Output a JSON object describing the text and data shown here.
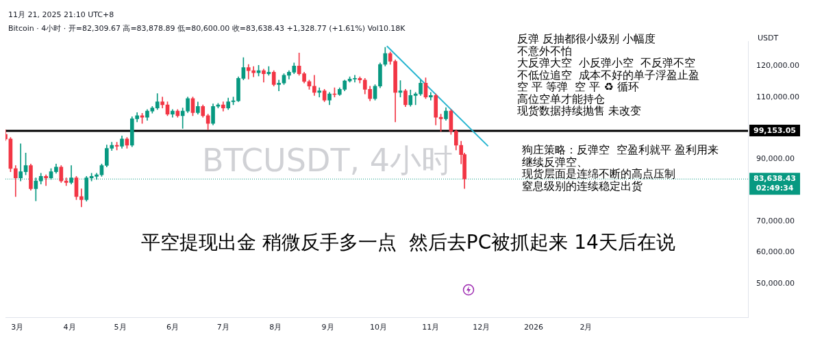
{
  "chart_data": {
    "type": "candlestick",
    "title": "平空提现出金 稍微反手多一点  然后去PC被抓起来 14天后在说",
    "ylabel": "USDT",
    "annotations": [
      "11月 21, 2025 21:10 UTC+8",
      "Bitcoin · 4小时 · 开=82,309.67 高=83,878.89 低=80,600.00 收=83,638.43 +1,328.77 (+1.61%) Vol10.18K",
      "BTCUSDT, 4小时",
      "02:49:34",
      "反弹 反抽都很小级别 小幅度",
      "不意外不怕",
      "大反弹大空  小反弹小空  不反弹不空",
      "不低位追空  成本不好的单子浮盈止盈",
      "空 平 等弹  空 平 ♻ 循环",
      "高位空单才能持仓",
      "现货数据持续抛售 未改变",
      "狗庄策略：反弹空  空盈利就平 盈利用来",
      "继续反弹空、",
      "现货层面是连绵不断的高点压制",
      "窒息级别的连续稳定出货"
    ],
    "x": [
      "2025-02-22",
      "2025-02-25",
      "2025-02-28",
      "2025-03-03",
      "2025-03-06",
      "2025-03-09",
      "2025-03-12",
      "2025-03-15",
      "2025-03-18",
      "2025-03-21",
      "2025-03-24",
      "2025-03-27",
      "2025-03-30",
      "2025-04-02",
      "2025-04-05",
      "2025-04-08",
      "2025-04-11",
      "2025-04-14",
      "2025-04-17",
      "2025-04-20",
      "2025-04-23",
      "2025-04-26",
      "2025-04-29",
      "2025-05-02",
      "2025-05-05",
      "2025-05-08",
      "2025-05-11",
      "2025-05-14",
      "2025-05-17",
      "2025-05-20",
      "2025-05-23",
      "2025-05-26",
      "2025-05-29",
      "2025-06-01",
      "2025-06-04",
      "2025-06-07",
      "2025-06-10",
      "2025-06-13",
      "2025-06-16",
      "2025-06-19",
      "2025-06-22",
      "2025-06-25",
      "2025-06-28",
      "2025-07-01",
      "2025-07-04",
      "2025-07-07",
      "2025-07-10",
      "2025-07-13",
      "2025-07-16",
      "2025-07-19",
      "2025-07-22",
      "2025-07-25",
      "2025-07-28",
      "2025-07-31",
      "2025-08-03",
      "2025-08-06",
      "2025-08-09",
      "2025-08-12",
      "2025-08-15",
      "2025-08-18",
      "2025-08-21",
      "2025-08-24",
      "2025-08-27",
      "2025-08-30",
      "2025-09-02",
      "2025-09-05",
      "2025-09-08",
      "2025-09-11",
      "2025-09-14",
      "2025-09-17",
      "2025-09-20",
      "2025-09-23",
      "2025-09-26",
      "2025-09-29",
      "2025-10-02",
      "2025-10-05",
      "2025-10-08",
      "2025-10-11",
      "2025-10-14",
      "2025-10-17",
      "2025-10-20",
      "2025-10-23",
      "2025-10-26",
      "2025-10-29",
      "2025-11-01",
      "2025-11-04",
      "2025-11-07",
      "2025-11-10",
      "2025-11-13",
      "2025-11-16",
      "2025-11-19",
      "2025-11-21"
    ],
    "ohlc": [
      [
        98000,
        99500,
        96000,
        96500
      ],
      [
        96500,
        97000,
        86000,
        87000
      ],
      [
        87000,
        88000,
        78000,
        84000
      ],
      [
        84000,
        95000,
        83000,
        86000
      ],
      [
        86000,
        92000,
        85000,
        88000
      ],
      [
        88000,
        88500,
        80000,
        80500
      ],
      [
        80500,
        84000,
        76600,
        83000
      ],
      [
        83000,
        85500,
        82000,
        84500
      ],
      [
        84500,
        85000,
        81500,
        84000
      ],
      [
        84000,
        87000,
        83500,
        86000
      ],
      [
        86000,
        88500,
        85500,
        87500
      ],
      [
        87500,
        88000,
        82500,
        83000
      ],
      [
        83000,
        84000,
        81500,
        82500
      ],
      [
        82500,
        88000,
        82000,
        84000
      ],
      [
        84000,
        84500,
        77000,
        78000
      ],
      [
        78000,
        80500,
        74700,
        77000
      ],
      [
        77000,
        84500,
        76500,
        84000
      ],
      [
        84000,
        85500,
        83000,
        84500
      ],
      [
        84500,
        85500,
        83500,
        85000
      ],
      [
        85000,
        88500,
        84500,
        88000
      ],
      [
        88000,
        94600,
        87500,
        93500
      ],
      [
        93500,
        95500,
        92800,
        94500
      ],
      [
        94500,
        95500,
        93000,
        94200
      ],
      [
        94200,
        97500,
        93500,
        96500
      ],
      [
        96500,
        97000,
        93500,
        94500
      ],
      [
        94500,
        103700,
        94000,
        103000
      ],
      [
        103000,
        105000,
        102000,
        104000
      ],
      [
        104000,
        104800,
        101500,
        103500
      ],
      [
        103500,
        106000,
        102500,
        105500
      ],
      [
        105500,
        107000,
        104800,
        106500
      ],
      [
        106500,
        111100,
        106000,
        108500
      ],
      [
        108500,
        110000,
        106500,
        107500
      ],
      [
        107500,
        108500,
        104000,
        104500
      ],
      [
        104500,
        106000,
        103500,
        105500
      ],
      [
        105500,
        106000,
        103500,
        104000
      ],
      [
        104000,
        106500,
        99900,
        105500
      ],
      [
        105500,
        110000,
        105000,
        109500
      ],
      [
        109500,
        110000,
        104000,
        105000
      ],
      [
        105000,
        108400,
        104500,
        107000
      ],
      [
        107000,
        107500,
        103500,
        104000
      ],
      [
        104000,
        104500,
        99500,
        101500
      ],
      [
        101500,
        107800,
        101000,
        107000
      ],
      [
        107000,
        108000,
        106500,
        107500
      ],
      [
        107500,
        108500,
        105500,
        106500
      ],
      [
        106500,
        109700,
        106000,
        108500
      ],
      [
        108500,
        110000,
        107500,
        108800
      ],
      [
        108800,
        116500,
        108500,
        116000
      ],
      [
        116000,
        122700,
        115500,
        119500
      ],
      [
        119500,
        120500,
        115800,
        118500
      ],
      [
        118500,
        119800,
        116500,
        117800
      ],
      [
        117800,
        120200,
        116800,
        118500
      ],
      [
        118500,
        119000,
        114800,
        117500
      ],
      [
        117500,
        119800,
        117000,
        118000
      ],
      [
        118000,
        118500,
        113500,
        114000
      ],
      [
        114000,
        115500,
        112000,
        114500
      ],
      [
        114500,
        117500,
        114000,
        117000
      ],
      [
        117000,
        118500,
        115800,
        118000
      ],
      [
        118000,
        121000,
        117500,
        120000
      ],
      [
        120000,
        124200,
        117000,
        117500
      ],
      [
        117500,
        118000,
        114500,
        115000
      ],
      [
        115000,
        115500,
        112500,
        113500
      ],
      [
        113500,
        117000,
        110500,
        111500
      ],
      [
        111500,
        113000,
        110000,
        112000
      ],
      [
        112000,
        112500,
        108500,
        109000
      ],
      [
        109000,
        111500,
        107500,
        111000
      ],
      [
        111000,
        113000,
        110000,
        110800
      ],
      [
        110800,
        113000,
        110500,
        112500
      ],
      [
        112500,
        115500,
        112000,
        115200
      ],
      [
        115200,
        116500,
        114800,
        115800
      ],
      [
        115800,
        117000,
        114800,
        116000
      ],
      [
        116000,
        116500,
        114500,
        115500
      ],
      [
        115500,
        116000,
        111000,
        112500
      ],
      [
        112500,
        113500,
        108800,
        109500
      ],
      [
        109500,
        114000,
        109000,
        113500
      ],
      [
        113500,
        121000,
        113000,
        120500
      ],
      [
        120500,
        126000,
        120000,
        124000
      ],
      [
        124000,
        124500,
        120500,
        121500
      ],
      [
        121500,
        122000,
        102000,
        111500
      ],
      [
        111500,
        115300,
        110000,
        112000
      ],
      [
        112000,
        112500,
        106900,
        107500
      ],
      [
        107500,
        112300,
        107000,
        110500
      ],
      [
        110500,
        111500,
        107500,
        111000
      ],
      [
        111000,
        115500,
        110500,
        114500
      ],
      [
        114500,
        116200,
        109500,
        110000
      ],
      [
        110000,
        111500,
        109000,
        110500
      ],
      [
        110500,
        111000,
        101000,
        103500
      ],
      [
        103500,
        104500,
        99000,
        103000
      ],
      [
        103000,
        106600,
        102500,
        105500
      ],
      [
        105500,
        106000,
        98000,
        99000
      ],
      [
        99000,
        99500,
        93000,
        94500
      ],
      [
        94500,
        95800,
        88500,
        91500
      ],
      [
        91500,
        92000,
        80600,
        83638.43
      ]
    ],
    "colors": [
      "#f23645",
      "#f23645",
      "#f23645",
      "#089981",
      "#089981",
      "#f23645",
      "#089981",
      "#089981",
      "#f23645",
      "#089981",
      "#089981",
      "#f23645",
      "#f23645",
      "#089981",
      "#f23645",
      "#f23645",
      "#089981",
      "#089981",
      "#089981",
      "#089981",
      "#089981",
      "#089981",
      "#f23645",
      "#089981",
      "#f23645",
      "#089981",
      "#089981",
      "#f23645",
      "#089981",
      "#089981",
      "#089981",
      "#f23645",
      "#f23645",
      "#089981",
      "#f23645",
      "#089981",
      "#089981",
      "#f23645",
      "#089981",
      "#f23645",
      "#f23645",
      "#089981",
      "#089981",
      "#f23645",
      "#089981",
      "#089981",
      "#089981",
      "#089981",
      "#f23645",
      "#f23645",
      "#089981",
      "#f23645",
      "#089981",
      "#f23645",
      "#089981",
      "#089981",
      "#089981",
      "#089981",
      "#f23645",
      "#f23645",
      "#f23645",
      "#f23645",
      "#089981",
      "#f23645",
      "#089981",
      "#f23645",
      "#089981",
      "#089981",
      "#089981",
      "#089981",
      "#f23645",
      "#f23645",
      "#f23645",
      "#089981",
      "#089981",
      "#089981",
      "#f23645",
      "#f23645",
      "#089981",
      "#f23645",
      "#089981",
      "#089981",
      "#089981",
      "#f23645",
      "#089981",
      "#f23645",
      "#f23645",
      "#089981",
      "#f23645",
      "#f23645",
      "#f23645",
      "#f23645"
    ],
    "series": [
      {
        "type": "line",
        "x": [
          "2025-10-06",
          "2025-12-05"
        ],
        "values": [
          126400,
          94200
        ],
        "color": "#26b5d0"
      }
    ],
    "ref_lines": [
      {
        "axis": "y",
        "value": 99153.05,
        "label": "99,153.05",
        "color": "#000000"
      },
      {
        "axis": "y",
        "value": 83638.43,
        "label": "83,638.43",
        "color": "#089981",
        "line_style": "dotted"
      }
    ],
    "xlim": [
      "2025-02-22",
      "2026-05-08"
    ],
    "xticks": [
      {
        "value": "2025-03-01",
        "label": "3月"
      },
      {
        "value": "2025-04-01",
        "label": "4月"
      },
      {
        "value": "2025-05-01",
        "label": "5月"
      },
      {
        "value": "2025-06-01",
        "label": "6月"
      },
      {
        "value": "2025-07-01",
        "label": "7月"
      },
      {
        "value": "2025-08-01",
        "label": "8月"
      },
      {
        "value": "2025-09-01",
        "label": "9月"
      },
      {
        "value": "2025-10-01",
        "label": "10月"
      },
      {
        "value": "2025-11-01",
        "label": "11月"
      },
      {
        "value": "2025-12-01",
        "label": "12月"
      },
      {
        "value": "2026-01-01",
        "label": "2026"
      },
      {
        "value": "2026-02-01",
        "label": "2月"
      }
    ],
    "ylim": [
      39000,
      128000
    ],
    "yticks": [
      {
        "value": 50000,
        "label": "50,000.00"
      },
      {
        "value": 60000,
        "label": "60,000.00"
      },
      {
        "value": 70000,
        "label": "70,000.00"
      },
      {
        "value": 90000,
        "label": "90,000.00"
      },
      {
        "value": 110000,
        "label": "110,000.00"
      },
      {
        "value": 120000,
        "label": "120,000.00"
      }
    ]
  }
}
